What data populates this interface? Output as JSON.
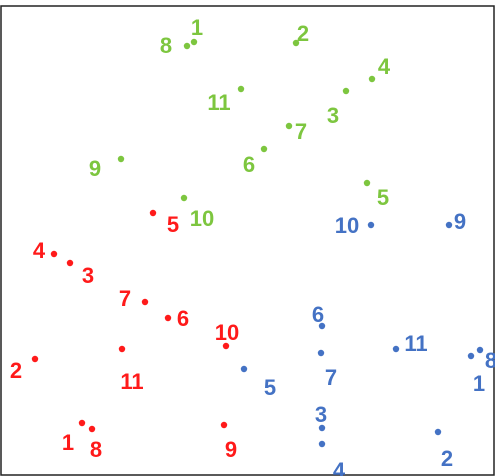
{
  "diagram": {
    "groups": [
      {
        "name": "green",
        "color": "#7dc63f",
        "points": [
          {
            "label": "1"
          },
          {
            "label": "8"
          },
          {
            "label": "2"
          },
          {
            "label": "4"
          },
          {
            "label": "3"
          },
          {
            "label": "11"
          },
          {
            "label": "7"
          },
          {
            "label": "6"
          },
          {
            "label": "9"
          },
          {
            "label": "5"
          },
          {
            "label": "10"
          }
        ]
      },
      {
        "name": "red",
        "color": "#ff1a1a",
        "points": [
          {
            "label": "5"
          },
          {
            "label": "4"
          },
          {
            "label": "3"
          },
          {
            "label": "7"
          },
          {
            "label": "6"
          },
          {
            "label": "10"
          },
          {
            "label": "2"
          },
          {
            "label": "11"
          },
          {
            "label": "1"
          },
          {
            "label": "8"
          },
          {
            "label": "9"
          }
        ]
      },
      {
        "name": "blue",
        "color": "#4472c4",
        "points": [
          {
            "label": "10"
          },
          {
            "label": "9"
          },
          {
            "label": "6"
          },
          {
            "label": "11"
          },
          {
            "label": "8"
          },
          {
            "label": "7"
          },
          {
            "label": "1"
          },
          {
            "label": "5"
          },
          {
            "label": "3"
          },
          {
            "label": "4"
          },
          {
            "label": "2"
          }
        ]
      }
    ]
  }
}
